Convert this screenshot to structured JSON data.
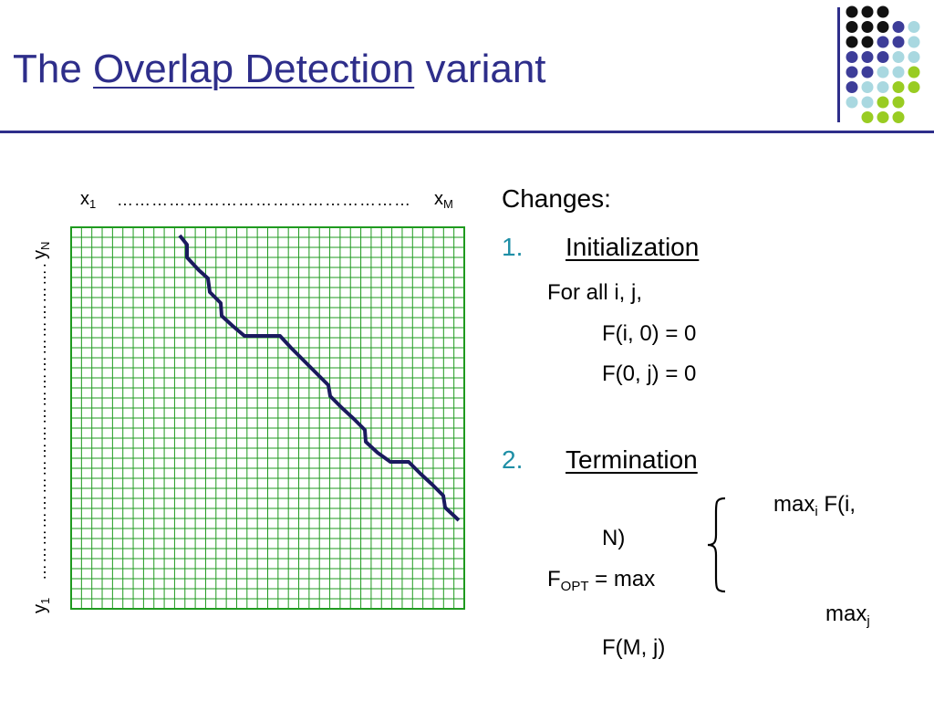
{
  "slide": {
    "title_pre": "The ",
    "title_link": "Overlap Detection",
    "title_post": " variant"
  },
  "grid": {
    "x_first": "x",
    "x_first_sub": "1",
    "x_last": "x",
    "x_last_sub": "M",
    "y_first": "y",
    "y_first_sub": "1",
    "y_last": "y",
    "y_last_sub": "N",
    "dots": "………………………………………………………………………………"
  },
  "content": {
    "heading": "Changes:",
    "item1_num": "1.",
    "item1_label": "Initialization",
    "for_all": "For all i, j,",
    "eq1": "F(i, 0) = 0",
    "eq2": "F(0, j) = 0",
    "item2_num": "2.",
    "item2_label": "Termination",
    "max_i": "max",
    "max_i_sub": "i",
    "max_i_rest": " F(i,",
    "n_close": "N)",
    "f_opt": "F",
    "f_opt_sub": "OPT",
    "f_opt_rest": " = max",
    "max_j": "max",
    "max_j_sub": "j",
    "fmj": "F(M, j)"
  },
  "colors": {
    "title": "#2e2e8a",
    "grid_line": "#1f9a1f",
    "path": "#1a1a5e",
    "accent_teal": "#1f8fa6",
    "dot_black": "#111111",
    "dot_purple": "#3d3d99",
    "dot_lightblue": "#a9d8e0",
    "dot_lime": "#99cc22"
  }
}
